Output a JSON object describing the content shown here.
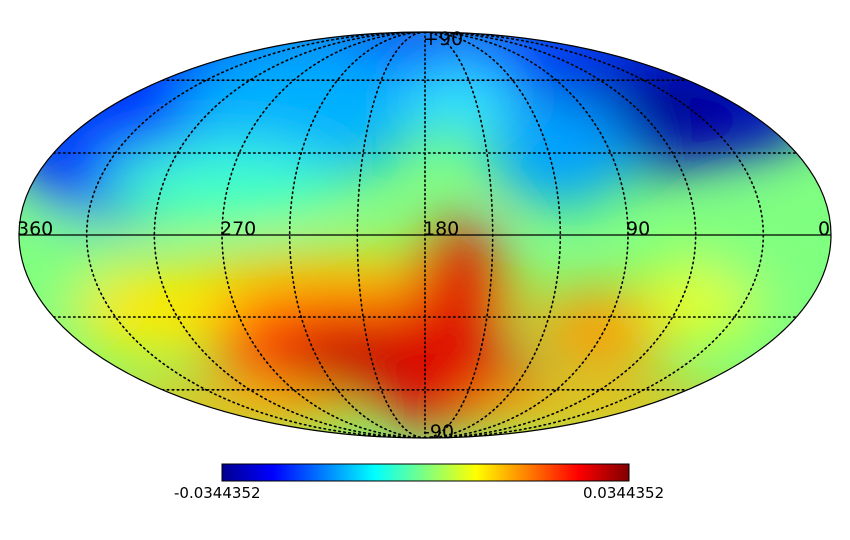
{
  "map": {
    "projection": "mollweide",
    "colormap": "jet",
    "graticule": "dotted",
    "longitude_labels": [
      "360",
      "270",
      "180",
      "90",
      "0"
    ],
    "latitude_labels": [
      "+90",
      "-90"
    ]
  },
  "colorbar": {
    "min_label": "-0.0344352",
    "max_label": "0.0344352",
    "min": -0.0344352,
    "max": 0.0344352
  },
  "chart_data": {
    "type": "heatmap",
    "title": "",
    "xlabel": "",
    "ylabel": "",
    "x": [
      360,
      270,
      180,
      90,
      0
    ],
    "y": [
      90,
      -90
    ],
    "value_range": [
      -0.0344352,
      0.0344352
    ],
    "colormap": "jet",
    "features": [
      {
        "lon": 330,
        "lat": 25,
        "value": -0.032
      },
      {
        "lon": 45,
        "lat": 45,
        "value": -0.034
      },
      {
        "lon": 70,
        "lat": 20,
        "value": -0.03
      },
      {
        "lon": 230,
        "lat": 40,
        "value": -0.015
      },
      {
        "lon": 185,
        "lat": 15,
        "value": 0.0
      },
      {
        "lon": 220,
        "lat": -40,
        "value": 0.032
      },
      {
        "lon": 160,
        "lat": -35,
        "value": 0.03
      },
      {
        "lon": 150,
        "lat": -60,
        "value": 0.028
      },
      {
        "lon": 110,
        "lat": -30,
        "value": 0.015
      },
      {
        "lon": 20,
        "lat": -20,
        "value": 0.0
      }
    ]
  }
}
